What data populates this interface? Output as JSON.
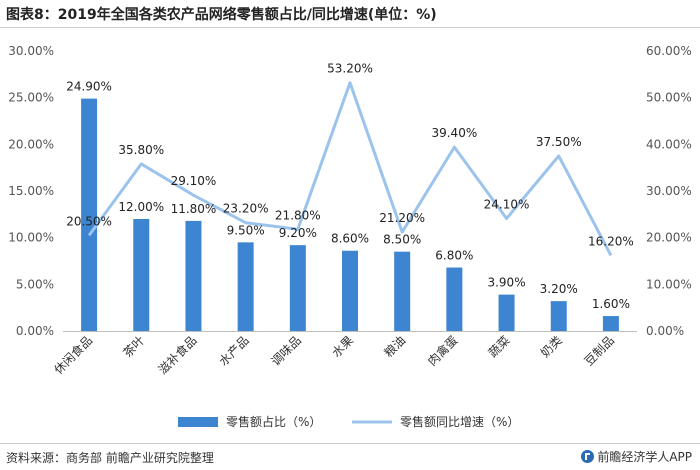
{
  "title": "图表8：2019年全国各类农产品网络零售额占比/同比增速(单位：%)",
  "source": "资料来源：商务部 前瞻产业研究院整理",
  "brand": "前瞻经济学人APP",
  "chart_data": {
    "type": "bar",
    "title": "图表8：2019年全国各类农产品网络零售额占比/同比增速(单位：%)",
    "categories": [
      "休闲食品",
      "茶叶",
      "滋补食品",
      "水产品",
      "调味品",
      "水果",
      "粮油",
      "肉禽蛋",
      "蔬菜",
      "奶类",
      "豆制品"
    ],
    "series": [
      {
        "name": "零售额占比（%）",
        "type": "bar",
        "axis": "left",
        "color": "#3d85d1",
        "values": [
          24.9,
          12.0,
          11.8,
          9.5,
          9.2,
          8.6,
          8.5,
          6.8,
          3.9,
          3.2,
          1.6
        ],
        "labels": [
          "24.90%",
          "12.00%",
          "11.80%",
          "9.50%",
          "9.20%",
          "8.60%",
          "8.50%",
          "6.80%",
          "3.90%",
          "3.20%",
          "1.60%"
        ]
      },
      {
        "name": "零售额同比增速（%）",
        "type": "line",
        "axis": "right",
        "color": "#9cc3ec",
        "values": [
          20.5,
          35.8,
          29.1,
          23.2,
          21.8,
          53.2,
          21.2,
          39.4,
          24.1,
          37.5,
          16.2
        ],
        "labels": [
          "20.50%",
          "35.80%",
          "29.10%",
          "23.20%",
          "21.80%",
          "53.20%",
          "21.20%",
          "39.40%",
          "24.10%",
          "37.50%",
          "16.20%"
        ]
      }
    ],
    "y_left": {
      "lim": [
        0,
        30
      ],
      "ticks": [
        "0.00%",
        "5.00%",
        "10.00%",
        "15.00%",
        "20.00%",
        "25.00%",
        "30.00%"
      ]
    },
    "y_right": {
      "lim": [
        0,
        60
      ],
      "ticks": [
        "0.00%",
        "10.00%",
        "20.00%",
        "30.00%",
        "40.00%",
        "50.00%",
        "60.00%"
      ]
    },
    "grid": false,
    "legend": "bottom"
  }
}
